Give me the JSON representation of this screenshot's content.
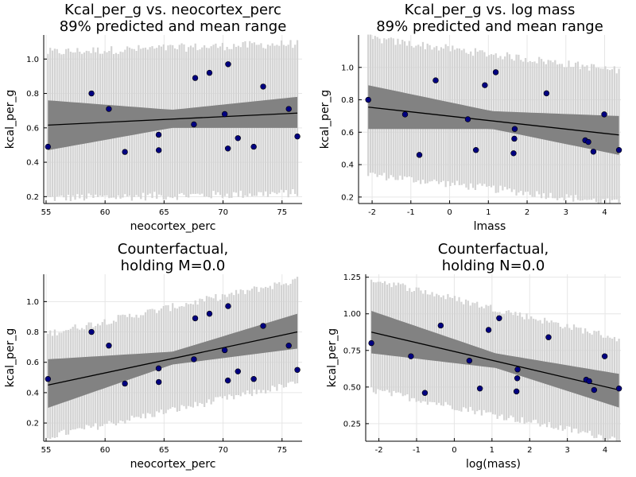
{
  "chart_data": [
    {
      "type": "scatter",
      "title": [
        "Kcal_per_g vs. neocortex_perc",
        "89% predicted and mean range"
      ],
      "xlabel": "neocortex_perc",
      "ylabel": "kcal_per_g",
      "xlim": [
        54.8,
        76.7
      ],
      "ylim": [
        0.16,
        1.14
      ],
      "xticks": [
        55,
        60,
        65,
        70,
        75
      ],
      "yticks": [
        0.2,
        0.4,
        0.6,
        0.8,
        1.0
      ],
      "ytick_labels": [
        "0.2",
        "0.4",
        "0.6",
        "0.8",
        "1.0"
      ],
      "grid": true,
      "points": [
        [
          55.16,
          0.49
        ],
        [
          58.85,
          0.8
        ],
        [
          60.32,
          0.71
        ],
        [
          61.68,
          0.46
        ],
        [
          64.55,
          0.47
        ],
        [
          64.54,
          0.56
        ],
        [
          67.53,
          0.62
        ],
        [
          67.64,
          0.89
        ],
        [
          68.85,
          0.92
        ],
        [
          70.14,
          0.68
        ],
        [
          70.41,
          0.48
        ],
        [
          70.43,
          0.97
        ],
        [
          71.26,
          0.54
        ],
        [
          72.6,
          0.49
        ],
        [
          73.4,
          0.84
        ],
        [
          75.57,
          0.71
        ],
        [
          76.3,
          0.55
        ]
      ],
      "mean_line": [
        [
          55.16,
          0.616
        ],
        [
          76.3,
          0.686
        ]
      ],
      "mean_band": {
        "x": [
          55.16,
          65.7,
          76.3
        ],
        "lower": [
          0.47,
          0.6,
          0.6
        ],
        "upper": [
          0.76,
          0.705,
          0.78
        ]
      },
      "predicted_band": {
        "x": [
          55.16,
          76.3
        ],
        "lower": [
          0.19,
          0.22
        ],
        "upper": [
          1.04,
          1.09
        ]
      }
    },
    {
      "type": "scatter",
      "title": [
        "Kcal_per_g vs. log mass",
        "89% predicted and mean range"
      ],
      "xlabel": "lmass",
      "ylabel": "kcal_per_g",
      "xlim": [
        -2.35,
        4.42
      ],
      "ylim": [
        0.16,
        1.2
      ],
      "xticks": [
        -2,
        -1,
        0,
        1,
        2,
        3,
        4
      ],
      "yticks": [
        0.2,
        0.4,
        0.6,
        0.8,
        1.0
      ],
      "ytick_labels": [
        "0.2",
        "0.4",
        "0.6",
        "0.8",
        "1.0"
      ],
      "grid": true,
      "points": [
        [
          -2.1,
          0.8
        ],
        [
          -1.15,
          0.71
        ],
        [
          -0.78,
          0.46
        ],
        [
          -0.36,
          0.92
        ],
        [
          0.47,
          0.68
        ],
        [
          0.68,
          0.49
        ],
        [
          0.91,
          0.89
        ],
        [
          1.19,
          0.97
        ],
        [
          1.65,
          0.47
        ],
        [
          1.67,
          0.56
        ],
        [
          1.68,
          0.62
        ],
        [
          2.5,
          0.84
        ],
        [
          3.5,
          0.55
        ],
        [
          3.58,
          0.54
        ],
        [
          3.71,
          0.48
        ],
        [
          3.99,
          0.71
        ],
        [
          4.37,
          0.49
        ]
      ],
      "mean_line": [
        [
          -2.1,
          0.755
        ],
        [
          4.37,
          0.583
        ]
      ],
      "mean_band": {
        "x": [
          -2.1,
          1.1,
          4.37
        ],
        "lower": [
          0.62,
          0.62,
          0.46
        ],
        "upper": [
          0.89,
          0.73,
          0.7
        ]
      },
      "predicted_band": {
        "x": [
          -2.1,
          4.37
        ],
        "lower": [
          0.34,
          0.16
        ],
        "upper": [
          1.18,
          0.98
        ]
      }
    },
    {
      "type": "scatter",
      "title": [
        "Counterfactual,",
        "holding M=0.0"
      ],
      "xlabel": "neocortex_perc",
      "ylabel": "kcal_per_g",
      "xlim": [
        54.8,
        76.7
      ],
      "ylim": [
        0.08,
        1.18
      ],
      "xticks": [
        55,
        60,
        65,
        70,
        75
      ],
      "yticks": [
        0.2,
        0.4,
        0.6,
        0.8,
        1.0
      ],
      "ytick_labels": [
        "0.2",
        "0.4",
        "0.6",
        "0.8",
        "1.0"
      ],
      "grid": true,
      "points": [
        [
          55.16,
          0.49
        ],
        [
          58.85,
          0.8
        ],
        [
          60.32,
          0.71
        ],
        [
          61.68,
          0.46
        ],
        [
          64.55,
          0.47
        ],
        [
          64.54,
          0.56
        ],
        [
          67.53,
          0.62
        ],
        [
          67.64,
          0.89
        ],
        [
          68.85,
          0.92
        ],
        [
          70.14,
          0.68
        ],
        [
          70.41,
          0.48
        ],
        [
          70.43,
          0.97
        ],
        [
          71.26,
          0.54
        ],
        [
          72.6,
          0.49
        ],
        [
          73.4,
          0.84
        ],
        [
          75.57,
          0.71
        ],
        [
          76.3,
          0.55
        ]
      ],
      "mean_line": [
        [
          55.16,
          0.45
        ],
        [
          76.3,
          0.8
        ]
      ],
      "mean_band": {
        "x": [
          55.16,
          65.7,
          76.3
        ],
        "lower": [
          0.3,
          0.585,
          0.69
        ],
        "upper": [
          0.62,
          0.67,
          0.92
        ]
      },
      "predicted_band": {
        "x": [
          55.16,
          76.3
        ],
        "lower": [
          0.11,
          0.46
        ],
        "upper": [
          0.79,
          1.14
        ]
      }
    },
    {
      "type": "scatter",
      "title": [
        "Counterfactual,",
        "holding N=0.0"
      ],
      "xlabel": "log(mass)",
      "ylabel": "kcal_per_g",
      "xlim": [
        -2.35,
        4.42
      ],
      "ylim": [
        0.13,
        1.27
      ],
      "xticks": [
        -2,
        -1,
        0,
        1,
        2,
        3,
        4
      ],
      "yticks": [
        0.25,
        0.5,
        0.75,
        1.0,
        1.25
      ],
      "ytick_labels": [
        "0.25",
        "0.50",
        "0.75",
        "1.00",
        "1.25"
      ],
      "grid": true,
      "points": [
        [
          -2.2,
          0.8
        ],
        [
          -1.15,
          0.71
        ],
        [
          -0.78,
          0.46
        ],
        [
          -0.36,
          0.92
        ],
        [
          0.4,
          0.68
        ],
        [
          0.68,
          0.49
        ],
        [
          0.91,
          0.89
        ],
        [
          1.19,
          0.97
        ],
        [
          1.65,
          0.47
        ],
        [
          1.67,
          0.56
        ],
        [
          1.68,
          0.62
        ],
        [
          2.5,
          0.84
        ],
        [
          3.5,
          0.55
        ],
        [
          3.58,
          0.54
        ],
        [
          3.71,
          0.48
        ],
        [
          3.99,
          0.71
        ],
        [
          4.37,
          0.49
        ]
      ],
      "mean_line": [
        [
          -2.2,
          0.875
        ],
        [
          4.37,
          0.48
        ]
      ],
      "mean_band": {
        "x": [
          -2.2,
          1.1,
          4.37
        ],
        "lower": [
          0.73,
          0.63,
          0.36
        ],
        "upper": [
          1.02,
          0.73,
          0.59
        ]
      },
      "predicted_band": {
        "x": [
          -2.2,
          4.37
        ],
        "lower": [
          0.48,
          0.14
        ],
        "upper": [
          1.24,
          0.83
        ]
      }
    }
  ],
  "colors": {
    "predicted_band": "#d3d3d3",
    "mean_band": "#828282",
    "mean_line": "#000000",
    "points": "#000080",
    "grid": "#e6e6e6",
    "axis": "#000000"
  }
}
